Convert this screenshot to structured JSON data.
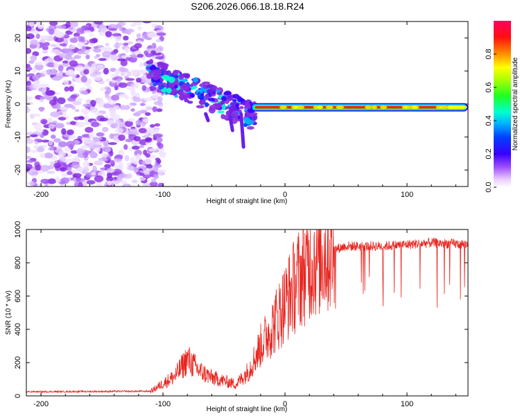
{
  "title": "S206.2026.066.18.18.R24",
  "chart_data": [
    {
      "type": "heatmap",
      "name": "spectrogram",
      "xlabel": "Height of straight line (km)",
      "ylabel": "Frequency (Hz)",
      "xlim": [
        -212,
        150
      ],
      "ylim": [
        -25,
        25
      ],
      "xticks": [
        -200,
        -100,
        0,
        100
      ],
      "yticks": [
        -20,
        -10,
        0,
        10,
        20
      ],
      "colorbar": {
        "label": "Normalized spectral amplitude",
        "range": [
          0,
          1
        ],
        "ticks": [
          "0.0",
          "0.2",
          "0.4",
          "0.6",
          "0.8"
        ],
        "tick_values": [
          0.0,
          0.2,
          0.4,
          0.6,
          0.8
        ]
      },
      "features": {
        "noise_region_x": [
          -212,
          -100
        ],
        "scatter_region_x": [
          -112,
          -25
        ],
        "carrier_start_x": -28,
        "carrier_freq_hz": -1
      }
    },
    {
      "type": "line",
      "name": "snr",
      "xlabel": "Height of straight line (km)",
      "ylabel": "SNR (10 * v/v)",
      "xlim": [
        -212,
        150
      ],
      "ylim": [
        0,
        1000
      ],
      "xticks": [
        -200,
        -100,
        0,
        100
      ],
      "yticks": [
        0,
        200,
        400,
        600,
        800,
        1000
      ],
      "color": "#e8251f",
      "series": [
        {
          "name": "SNR",
          "x": [
            -212,
            -110,
            -90,
            -80,
            -70,
            -60,
            -50,
            -40,
            -30,
            -20,
            -10,
            0,
            10,
            20,
            30,
            40,
            50,
            60,
            80,
            100,
            120,
            150
          ],
          "values": [
            25,
            28,
            120,
            220,
            150,
            110,
            90,
            70,
            150,
            300,
            420,
            560,
            690,
            800,
            850,
            880,
            900,
            900,
            900,
            910,
            920,
            910
          ]
        }
      ]
    }
  ]
}
